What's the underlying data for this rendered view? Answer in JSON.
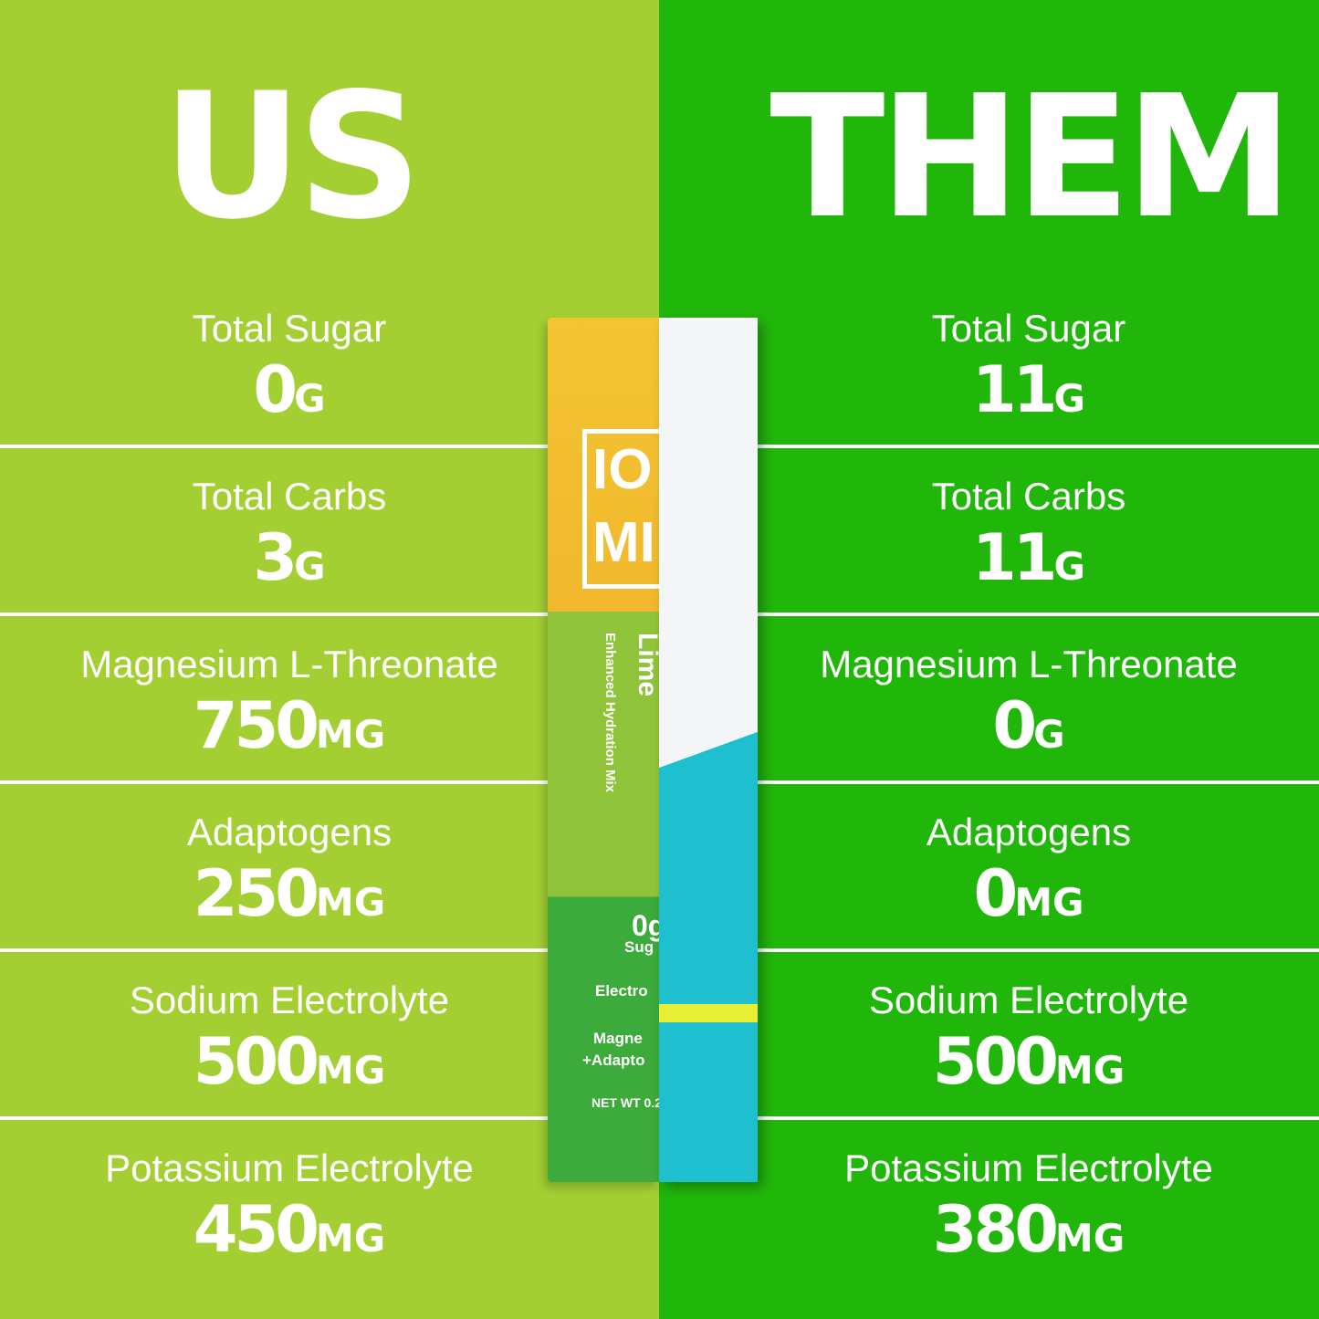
{
  "colors": {
    "us_bg": "#a3cf33",
    "them_bg": "#21b70a"
  },
  "us": {
    "title": "US",
    "rows": [
      {
        "label": "Total Sugar",
        "value": "0",
        "unit": "G"
      },
      {
        "label": "Total Carbs",
        "value": "3",
        "unit": "G"
      },
      {
        "label": "Magnesium L-Threonate",
        "value": "750",
        "unit": "MG"
      },
      {
        "label": "Adaptogens",
        "value": "250",
        "unit": "MG"
      },
      {
        "label": "Sodium Electrolyte",
        "value": "500",
        "unit": "MG"
      },
      {
        "label": "Potassium Electrolyte",
        "value": "450",
        "unit": "MG"
      }
    ]
  },
  "them": {
    "title": "THEM",
    "rows": [
      {
        "label": "Total Sugar",
        "value": "11",
        "unit": "G"
      },
      {
        "label": "Total Carbs",
        "value": "11",
        "unit": "G"
      },
      {
        "label": "Magnesium L-Threonate",
        "value": "0",
        "unit": "G"
      },
      {
        "label": "Adaptogens",
        "value": "0",
        "unit": "MG"
      },
      {
        "label": "Sodium Electrolyte",
        "value": "500",
        "unit": "MG"
      },
      {
        "label": "Potassium Electrolyte",
        "value": "380",
        "unit": "MG"
      }
    ]
  },
  "packet": {
    "logo": "IO MI",
    "flavor": "Lime",
    "subtitle": "Enhanced Hydration Mix",
    "badge_value": "0g",
    "badge_label": "Sug",
    "line1": "Electro",
    "line2": "Magne",
    "line3": "+Adapto",
    "net_wt": "NET WT 0.2"
  }
}
